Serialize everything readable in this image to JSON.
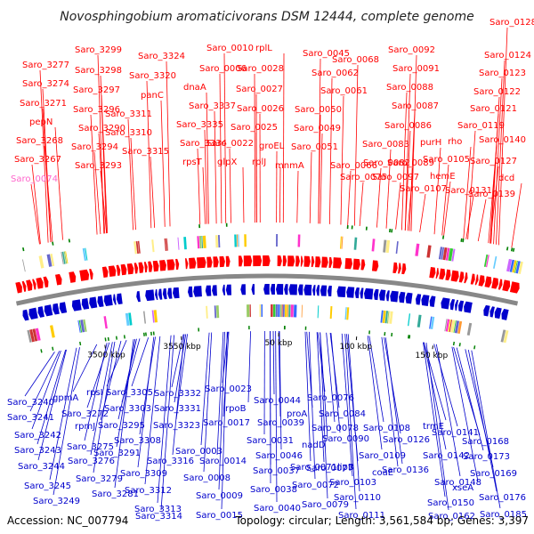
{
  "title": "Novosphingobium aromaticivorans DSM 12444, complete genome",
  "footer": {
    "accession": "Accession: NC_007794",
    "summary": "Topology: circular; Length: 3,561,584 bp; Genes: 3,397"
  },
  "scale_labels": [
    "3500 kbp",
    "3550 kbp",
    "50 kbp",
    "100 kbp",
    "150 kbp"
  ],
  "colors": {
    "forward_strand": "#ff0000",
    "reverse_strand": "#0000cc",
    "backbone": "#888888",
    "highlight": "#ff66cc",
    "rrna_marker": "#008000"
  },
  "top_genes": [
    "Saro_3277",
    "Saro_3274",
    "Saro_3271",
    "pepN",
    "Saro_3268",
    "Saro_3267",
    "Saro_0074",
    "Saro_3299",
    "Saro_3298",
    "Saro_3297",
    "Saro_3296",
    "Saro_3290",
    "Saro_3294",
    "Saro_3293",
    "Saro_3324",
    "Saro_3320",
    "panC",
    "Saro_3311",
    "Saro_3310",
    "Saro_3315",
    "Saro_0010",
    "Saro_0006",
    "dnaA",
    "Saro_3337",
    "Saro_3335",
    "Saro_3334",
    "rpsT",
    "Saro_0022",
    "glpX",
    "rplL",
    "Saro_0028",
    "Saro_0027",
    "Saro_0026",
    "Saro_0025",
    "rplJ",
    "Saro_0045",
    "Saro_0062",
    "Saro_0061",
    "Saro_0050",
    "Saro_0049",
    "groEL",
    "Saro_0051",
    "mnmA",
    "Saro_0068",
    "Saro_0092",
    "Saro_0091",
    "Saro_0088",
    "Saro_0087",
    "Saro_0086",
    "Saro_0083",
    "Saro_0082",
    "Saro_0066",
    "Saro_0075",
    "Saro_0089",
    "Saro_0097",
    "Saro_0128",
    "Saro_0124",
    "Saro_0123",
    "Saro_0122",
    "Saro_0121",
    "Saro_0119",
    "purH",
    "rho",
    "Saro_0105",
    "Saro_0127",
    "Saro_0140",
    "hemE",
    "dcd",
    "Saro_0107",
    "Saro_0131",
    "Saro_0139"
  ],
  "bottom_genes": [
    "Saro_3240",
    "gpmA",
    "Saro_3241",
    "Saro_3272",
    "Saro_3242",
    "rpsI",
    "Saro_3243",
    "rpmJ",
    "Saro_3275",
    "Saro_3244",
    "Saro_3276",
    "Saro_3245",
    "Saro_3279",
    "Saro_3249",
    "Saro_3281",
    "Saro_3305",
    "Saro_3303",
    "Saro_3295",
    "Saro_3291",
    "Saro_3308",
    "Saro_3309",
    "Saro_3312",
    "Saro_3313",
    "Saro_3314",
    "Saro_3332",
    "Saro_3331",
    "Saro_3323",
    "Saro_3316",
    "Saro_0023",
    "Saro_0017",
    "rpoB",
    "Saro_0003",
    "Saro_0014",
    "Saro_0008",
    "Saro_0009",
    "Saro_0015",
    "Saro_0031",
    "Saro_0044",
    "Saro_0039",
    "Saro_0046",
    "Saro_0037",
    "Saro_0038",
    "Saro_0040",
    "proA",
    "Saro_0076",
    "Saro_0084",
    "Saro_0078",
    "nadD",
    "Saro_0077",
    "Saro_0071",
    "Saro_0072",
    "Saro_0079",
    "Saro_0090",
    "lipB",
    "Saro_0103",
    "Saro_0110",
    "Saro_0111",
    "Saro_0108",
    "Saro_0109",
    "coaE",
    "Saro_0126",
    "Saro_0136",
    "Saro_0142",
    "Saro_0148",
    "Saro_0150",
    "Saro_0162",
    "trmE",
    "Saro_0141",
    "Saro_0168",
    "Saro_0173",
    "Saro_0169",
    "xseA",
    "Saro_0176",
    "Saro_0185"
  ]
}
